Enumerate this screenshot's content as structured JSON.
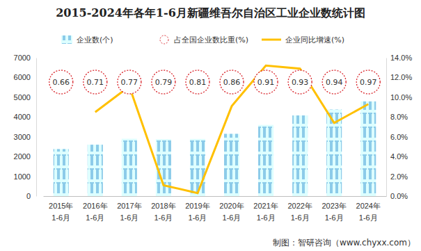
{
  "chart_data": {
    "type": "bar",
    "title": "2015-2024年各年1-6月新疆维吾尔自治区工业企业数统计图",
    "source": "制图：智研咨询（www.chyxx.com）",
    "categories": [
      "2015年1-6月",
      "2016年1-6月",
      "2017年1-6月",
      "2018年1-6月",
      "2019年1-6月",
      "2020年1-6月",
      "2021年1-6月",
      "2022年1-6月",
      "2023年1-6月",
      "2024年1-6月"
    ],
    "series": [
      {
        "name": "企业数(个)",
        "type": "bar",
        "color": "#8ccbe9",
        "values": [
          2380,
          2600,
          2900,
          2880,
          2890,
          3150,
          3600,
          4080,
          4380,
          4790
        ]
      },
      {
        "name": "占全国企业数比重(%)",
        "type": "label",
        "color": "#d9262c",
        "marker": "dotted-circle",
        "data_labels": true,
        "values": [
          0.66,
          0.71,
          0.77,
          0.79,
          0.81,
          0.86,
          0.91,
          0.93,
          0.94,
          0.97
        ]
      },
      {
        "name": "企业同比增速(%)",
        "type": "line",
        "axis": "y2",
        "color": "#ffc000",
        "values": [
          null,
          8.5,
          11.1,
          1.1,
          0.3,
          9.1,
          13.2,
          12.9,
          7.4,
          9.3
        ]
      }
    ],
    "ylim": [
      0,
      7000
    ],
    "yticks": [
      0,
      1000,
      2000,
      3000,
      4000,
      5000,
      6000,
      7000
    ],
    "y2lim": [
      0,
      14
    ],
    "y2ticks": [
      {
        "value": 0,
        "label": "0.0%"
      },
      {
        "value": 2,
        "label": "2.0%"
      },
      {
        "value": 4,
        "label": "4.0%"
      },
      {
        "value": 6,
        "label": "6.0%"
      },
      {
        "value": 8,
        "label": "8.0%"
      },
      {
        "value": 10,
        "label": "10.0%"
      },
      {
        "value": 12,
        "label": "12.0%"
      },
      {
        "value": 14,
        "label": "14.0%"
      }
    ],
    "legend": "top",
    "grid": false
  }
}
